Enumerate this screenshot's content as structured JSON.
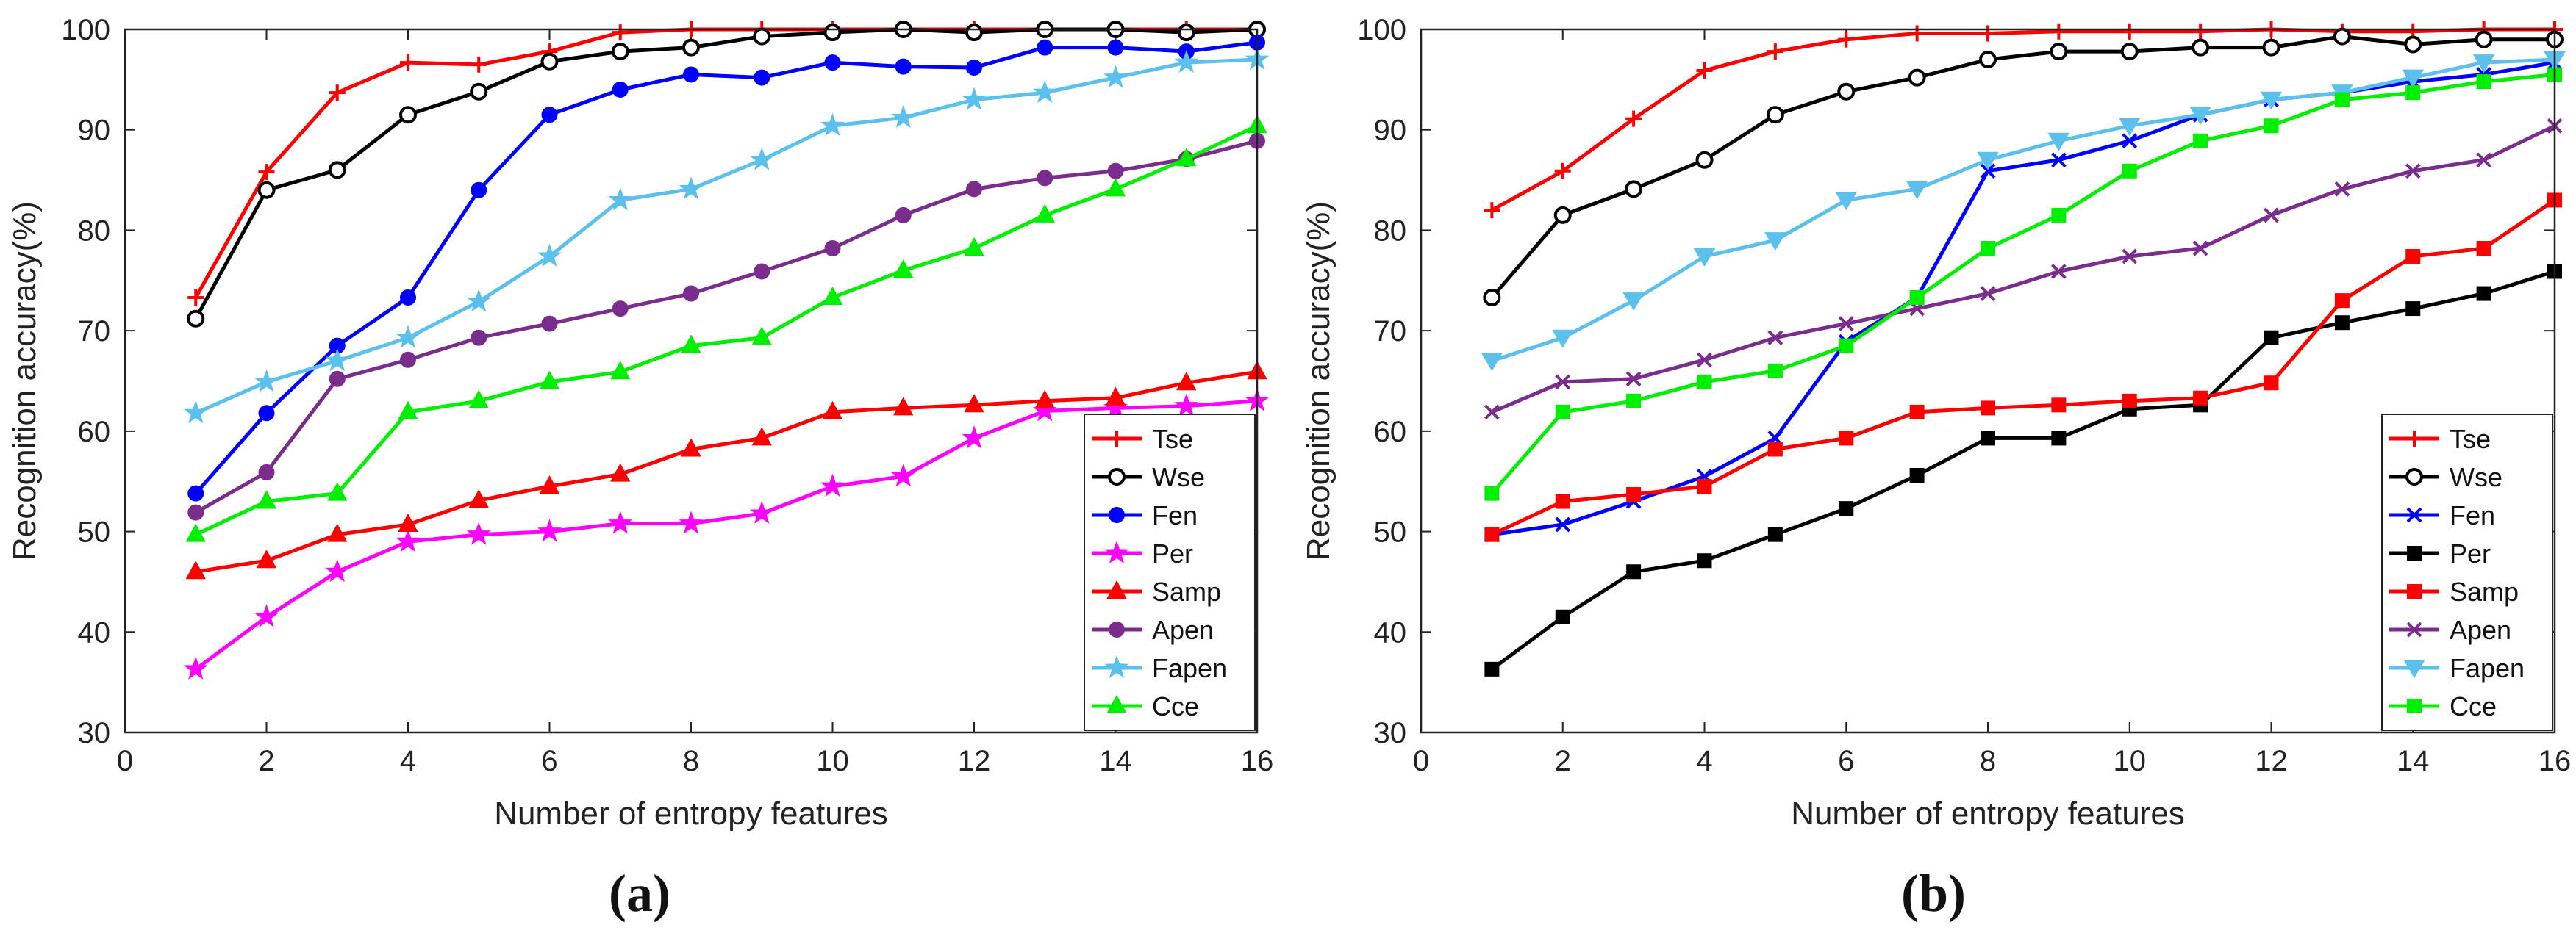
{
  "chart_data": [
    {
      "type": "line",
      "panel_label": "(a)",
      "xlabel": "Number of entropy features",
      "ylabel": "Recognition accuracy(%)",
      "xlim": [
        0,
        16
      ],
      "ylim": [
        30,
        100
      ],
      "xticks": [
        0,
        2,
        4,
        6,
        8,
        10,
        12,
        14,
        16
      ],
      "yticks": [
        30,
        40,
        50,
        60,
        70,
        80,
        90,
        100
      ],
      "legend_position": "bottom-right",
      "grid": false,
      "x": [
        1,
        2,
        3,
        4,
        5,
        6,
        7,
        8,
        9,
        10,
        11,
        12,
        13,
        14,
        15,
        16
      ],
      "series": [
        {
          "name": "Tse",
          "color": "#ff0000",
          "marker": "plus",
          "values": [
            73.3,
            85.8,
            93.7,
            96.7,
            96.5,
            97.8,
            99.7,
            100,
            100,
            100,
            100,
            100,
            100,
            100,
            100,
            100
          ]
        },
        {
          "name": "Wse",
          "color": "#000000",
          "marker": "circle-open",
          "values": [
            71.2,
            84.0,
            86.0,
            91.5,
            93.8,
            96.8,
            97.8,
            98.2,
            99.3,
            99.7,
            100,
            99.7,
            100,
            100,
            99.7,
            100
          ]
        },
        {
          "name": "Fen",
          "color": "#0000ff",
          "marker": "circle-filled",
          "values": [
            53.8,
            61.8,
            68.5,
            73.3,
            84.0,
            91.5,
            94.0,
            95.5,
            95.2,
            96.7,
            96.3,
            96.2,
            98.2,
            98.2,
            97.8,
            98.7
          ]
        },
        {
          "name": "Per",
          "color": "#ff00ff",
          "marker": "star",
          "values": [
            36.3,
            41.5,
            46.0,
            49.0,
            49.7,
            50.0,
            50.8,
            50.8,
            51.8,
            54.5,
            55.5,
            59.3,
            62.0,
            62.3,
            62.5,
            63.0
          ]
        },
        {
          "name": "Samp",
          "color": "#ff0000",
          "marker": "triangle",
          "values": [
            46.0,
            47.1,
            49.7,
            50.7,
            53.1,
            54.5,
            55.7,
            58.2,
            59.3,
            61.9,
            62.3,
            62.6,
            63.0,
            63.3,
            64.8,
            65.9
          ]
        },
        {
          "name": "Apen",
          "color": "#7b2d8e",
          "marker": "circle-filled",
          "values": [
            51.9,
            55.9,
            65.2,
            67.1,
            69.3,
            70.7,
            72.2,
            73.7,
            75.9,
            78.2,
            81.5,
            84.1,
            85.2,
            85.9,
            87.1,
            88.9
          ]
        },
        {
          "name": "Fapen",
          "color": "#5bc0eb",
          "marker": "star",
          "values": [
            61.8,
            64.9,
            67.0,
            69.3,
            72.9,
            77.4,
            83.0,
            84.1,
            87.0,
            90.4,
            91.2,
            93.0,
            93.7,
            95.2,
            96.7,
            97.0
          ]
        },
        {
          "name": "Cce",
          "color": "#00ee00",
          "marker": "triangle",
          "values": [
            49.7,
            53.0,
            53.8,
            61.9,
            63.0,
            64.9,
            65.9,
            68.5,
            69.3,
            73.3,
            76.0,
            78.2,
            81.5,
            84.1,
            87.1,
            90.4
          ]
        }
      ]
    },
    {
      "type": "line",
      "panel_label": "(b)",
      "xlabel": "Number of entropy features",
      "ylabel": "Recognition accuracy(%)",
      "xlim": [
        0,
        16
      ],
      "ylim": [
        30,
        100
      ],
      "xticks": [
        0,
        2,
        4,
        6,
        8,
        10,
        12,
        14,
        16
      ],
      "yticks": [
        30,
        40,
        50,
        60,
        70,
        80,
        90,
        100
      ],
      "legend_position": "bottom-right",
      "grid": false,
      "x": [
        1,
        2,
        3,
        4,
        5,
        6,
        7,
        8,
        9,
        10,
        11,
        12,
        13,
        14,
        15,
        16
      ],
      "series": [
        {
          "name": "Tse",
          "color": "#ff0000",
          "marker": "plus",
          "values": [
            82.0,
            85.9,
            91.1,
            95.9,
            97.8,
            99.0,
            99.6,
            99.6,
            99.8,
            99.8,
            99.8,
            100,
            99.8,
            99.8,
            100,
            100
          ]
        },
        {
          "name": "Wse",
          "color": "#000000",
          "marker": "circle-open",
          "values": [
            73.3,
            81.5,
            84.1,
            87.0,
            91.5,
            93.8,
            95.2,
            97.0,
            97.8,
            97.8,
            98.2,
            98.2,
            99.3,
            98.5,
            99.0,
            99.0
          ]
        },
        {
          "name": "Fen",
          "color": "#0000ff",
          "marker": "x",
          "values": [
            49.7,
            50.7,
            53.0,
            55.5,
            59.3,
            68.9,
            73.3,
            85.9,
            87.0,
            88.9,
            91.5,
            93.0,
            93.7,
            94.8,
            95.5,
            96.7
          ]
        },
        {
          "name": "Per",
          "color": "#000000",
          "marker": "square",
          "values": [
            36.3,
            41.5,
            46.0,
            47.1,
            49.7,
            52.3,
            55.6,
            59.3,
            59.3,
            62.2,
            62.6,
            69.3,
            70.8,
            72.2,
            73.7,
            75.9
          ]
        },
        {
          "name": "Samp",
          "color": "#ff0000",
          "marker": "square",
          "values": [
            49.7,
            53.0,
            53.7,
            54.5,
            58.2,
            59.3,
            61.9,
            62.3,
            62.6,
            63.0,
            63.3,
            64.8,
            73.0,
            77.4,
            78.2,
            83.0
          ]
        },
        {
          "name": "Apen",
          "color": "#7b2d8e",
          "marker": "x",
          "values": [
            61.9,
            64.9,
            65.2,
            67.1,
            69.3,
            70.7,
            72.2,
            73.7,
            75.9,
            77.4,
            78.2,
            81.5,
            84.1,
            85.9,
            87.0,
            90.4
          ]
        },
        {
          "name": "Fapen",
          "color": "#5bc0eb",
          "marker": "triangle-down",
          "values": [
            67.0,
            69.3,
            73.0,
            77.4,
            79.0,
            83.0,
            84.1,
            87.0,
            88.9,
            90.4,
            91.5,
            93.0,
            93.7,
            95.2,
            96.7,
            97.0
          ]
        },
        {
          "name": "Cce",
          "color": "#00ee00",
          "marker": "square",
          "values": [
            53.8,
            61.9,
            63.0,
            64.9,
            66.0,
            68.5,
            73.3,
            78.2,
            81.5,
            85.9,
            88.9,
            90.4,
            93.0,
            93.7,
            94.8,
            95.5
          ]
        }
      ]
    }
  ]
}
